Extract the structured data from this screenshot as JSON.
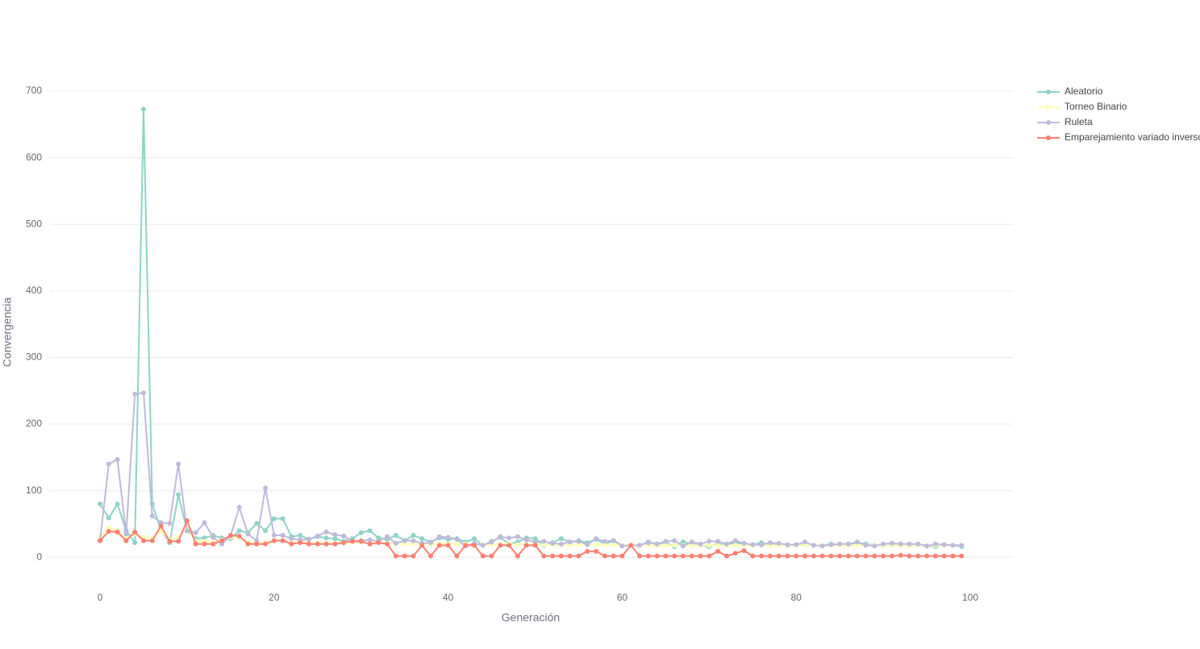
{
  "chart_data": {
    "type": "line",
    "xlabel": "Generación",
    "ylabel": "Convergencia",
    "x": [
      0,
      1,
      2,
      3,
      4,
      5,
      6,
      7,
      8,
      9,
      10,
      11,
      12,
      13,
      14,
      15,
      16,
      17,
      18,
      19,
      20,
      21,
      22,
      23,
      24,
      25,
      26,
      27,
      28,
      29,
      30,
      31,
      32,
      33,
      34,
      35,
      36,
      37,
      38,
      39,
      40,
      41,
      42,
      43,
      44,
      45,
      46,
      47,
      48,
      49,
      50,
      51,
      52,
      53,
      54,
      55,
      56,
      57,
      58,
      59,
      60,
      61,
      62,
      63,
      64,
      65,
      66,
      67,
      68,
      69,
      70,
      71,
      72,
      73,
      74,
      75,
      76,
      77,
      78,
      79,
      80,
      81,
      82,
      83,
      84,
      85,
      86,
      87,
      88,
      89,
      90,
      91,
      92,
      93,
      94,
      95,
      96,
      97,
      98,
      99
    ],
    "series": [
      {
        "name": "Aleatorio",
        "color": "#8dd3c7",
        "values": [
          80,
          59,
          80,
          40,
          22,
          673,
          80,
          41,
          22,
          94,
          40,
          28,
          29,
          33,
          29,
          28,
          40,
          37,
          51,
          40,
          58,
          58,
          31,
          33,
          27,
          31,
          29,
          28,
          24,
          28,
          37,
          40,
          29,
          27,
          33,
          25,
          33,
          28,
          23,
          29,
          27,
          28,
          23,
          28,
          18,
          24,
          30,
          20,
          23,
          29,
          28,
          18,
          22,
          28,
          23,
          25,
          22,
          27,
          20,
          25,
          18,
          18,
          18,
          23,
          20,
          22,
          16,
          23,
          20,
          18,
          16,
          20,
          19,
          22,
          20,
          19,
          22,
          19,
          19,
          18,
          19,
          18,
          18,
          18,
          20,
          19,
          19,
          22,
          20,
          18,
          18,
          19,
          20,
          19,
          19,
          18,
          16,
          19,
          18,
          16
        ]
      },
      {
        "name": "Torneo Binario",
        "color": "#ffffb3",
        "values": [
          30,
          45,
          40,
          28,
          35,
          30,
          28,
          40,
          26,
          30,
          45,
          24,
          24,
          23,
          26,
          30,
          30,
          22,
          22,
          22,
          25,
          25,
          22,
          23,
          21,
          21,
          21,
          21,
          22,
          23,
          23,
          21,
          22,
          21,
          20,
          20,
          20,
          20,
          20,
          20,
          20,
          20,
          20,
          20,
          19,
          19,
          20,
          20,
          19,
          20,
          20,
          19,
          19,
          19,
          19,
          19,
          19,
          19,
          19,
          19,
          18,
          19,
          18,
          18,
          18,
          18,
          18,
          18,
          18,
          18,
          18,
          18,
          18,
          18,
          18,
          18,
          18,
          18,
          18,
          18,
          18,
          18,
          18,
          18,
          18,
          18,
          18,
          18,
          18,
          18,
          18,
          18,
          18,
          18,
          18,
          18,
          18,
          18,
          18,
          18
        ]
      },
      {
        "name": "Ruleta",
        "color": "#bebada",
        "values": [
          25,
          140,
          147,
          35,
          245,
          247,
          62,
          52,
          51,
          140,
          40,
          37,
          52,
          30,
          20,
          32,
          75,
          35,
          25,
          104,
          33,
          33,
          28,
          26,
          27,
          32,
          38,
          34,
          32,
          24,
          25,
          26,
          24,
          31,
          21,
          25,
          25,
          21,
          22,
          31,
          30,
          27,
          17,
          21,
          18,
          23,
          31,
          29,
          31,
          26,
          23,
          24,
          21,
          20,
          23,
          24,
          19,
          28,
          24,
          25,
          17,
          18,
          18,
          22,
          20,
          24,
          25,
          17,
          23,
          20,
          24,
          24,
          20,
          25,
          21,
          19,
          19,
          22,
          21,
          19,
          19,
          23,
          18,
          17,
          19,
          20,
          20,
          23,
          18,
          17,
          20,
          21,
          20,
          20,
          20,
          17,
          20,
          19,
          18,
          18
        ]
      },
      {
        "name": "Emparejamiento variado inverso",
        "color": "#fb8072",
        "values": [
          25,
          39,
          38,
          25,
          38,
          25,
          25,
          47,
          24,
          24,
          55,
          20,
          20,
          20,
          25,
          33,
          32,
          20,
          20,
          20,
          25,
          25,
          20,
          22,
          20,
          20,
          20,
          20,
          22,
          24,
          24,
          20,
          22,
          20,
          2,
          2,
          2,
          18,
          2,
          18,
          18,
          2,
          18,
          18,
          2,
          2,
          18,
          18,
          2,
          18,
          18,
          2,
          2,
          2,
          2,
          2,
          9,
          9,
          2,
          2,
          2,
          18,
          2,
          2,
          2,
          2,
          2,
          2,
          2,
          2,
          2,
          9,
          2,
          6,
          10,
          2,
          2,
          2,
          2,
          2,
          2,
          2,
          2,
          2,
          2,
          2,
          2,
          2,
          2,
          2,
          2,
          2,
          3,
          2,
          2,
          2,
          2,
          2,
          2,
          2
        ]
      }
    ],
    "xlim": [
      -5.75,
      104.9
    ],
    "ylim": [
      -59,
      740
    ],
    "xticks": [
      0,
      20,
      40,
      60,
      80,
      100
    ],
    "yticks": [
      0,
      100,
      200,
      300,
      400,
      500,
      600,
      700
    ],
    "grid": true,
    "legend": "right"
  }
}
